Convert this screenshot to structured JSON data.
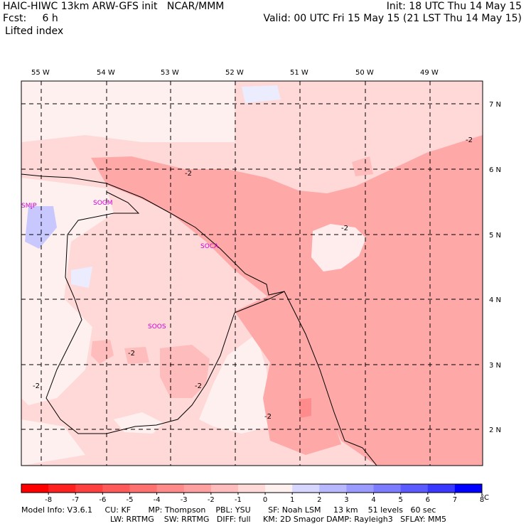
{
  "header": {
    "line1_left": "HAIC-HIWC 13km ARW-GFS init   NCAR/MMM",
    "line1_right": "Init: 18 UTC Thu 14 May 15",
    "line2_left": "Fcst:     6 h",
    "line2_right": "Valid: 00 UTC Fri 15 May 15 (21 LST Thu 14 May 15)",
    "field": "Lifted index"
  },
  "map": {
    "lon_labels": [
      "55 W",
      "54 W",
      "53 W",
      "52 W",
      "51 W",
      "50 W",
      "49 W"
    ],
    "lat_labels": [
      "7 N",
      "6 N",
      "5 N",
      "4 N",
      "3 N",
      "2 N"
    ],
    "contour_labels": [
      "-2",
      "-2",
      "-2",
      "-2",
      "-2",
      "-2",
      "-2"
    ],
    "stations": [
      "SMJP",
      "SOGM",
      "SOCA",
      "SOOS"
    ]
  },
  "colorbar": {
    "ticks": [
      "-8",
      "-7",
      "-6",
      "-5",
      "-4",
      "-3",
      "-2",
      "-1",
      "0",
      "1",
      "2",
      "3",
      "4",
      "5",
      "6",
      "7",
      "8"
    ],
    "unit": "°C",
    "colors": [
      "#ff0000",
      "#ff2020",
      "#ff4040",
      "#ff5a5a",
      "#ff7070",
      "#ff8a8a",
      "#ffa0a0",
      "#ffbcbc",
      "#ffd8d8",
      "#fff0f0",
      "#d6d6ff",
      "#b8b8ff",
      "#9a9aff",
      "#7c7cff",
      "#5a5aff",
      "#3838ff",
      "#0000ff"
    ]
  },
  "footer": {
    "line1": "Model Info: V3.6.1     CU: KF       MP: Thompson    PBL: YSU       SF: Noah LSM     13 km    51 levels   60 sec",
    "line2": "LW: RRTMG    SW: RRTMG   DIFF: full     KM: 2D Smagor DAMP: Rayleigh3   SFLAY: MM5"
  }
}
